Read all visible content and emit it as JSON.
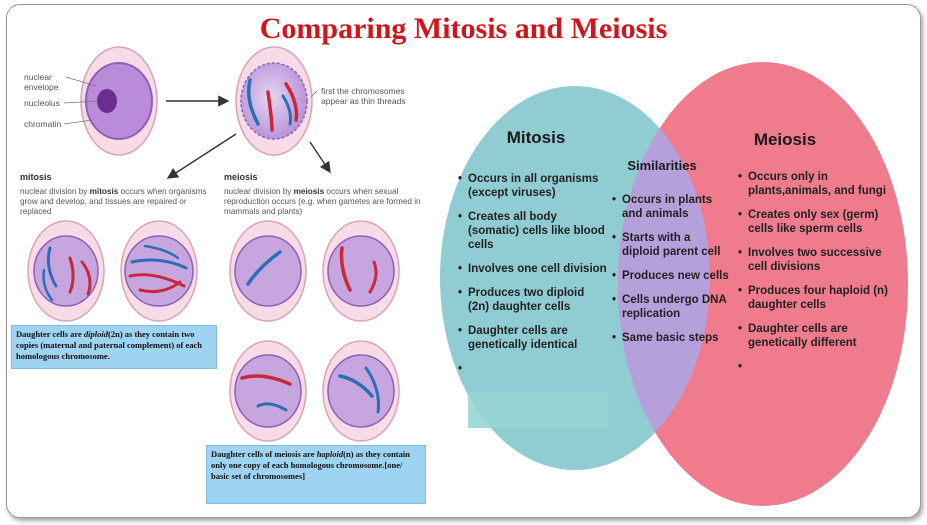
{
  "title": "Comparing Mitosis and Meiosis",
  "labels": {
    "nuclear_envelope": "nuclear\nenvelope",
    "nucleolus": "nucleolus",
    "chromatin": "chromatin",
    "threads_note": "first the chromosomes\nappear as thin threads"
  },
  "mitosis_panel": {
    "heading": "mitosis",
    "description_pre": "nuclear division by ",
    "description_bold": "mitosis",
    "description_post": " occurs when organisms grow and develop, and tissues are repaired or replaced",
    "note_pre": "Daughter cells are ",
    "note_italic": "diploid",
    "note_post": "(2n) as they contain two copies (maternal and paternal complement) of each homologous chromosome."
  },
  "meiosis_panel": {
    "heading": "meiosis",
    "description_pre": "nuclear division by ",
    "description_bold": "meiosis",
    "description_post": " occurs when sexual reproduction occurs (e.g. when gametes are formed in mammals and plants)",
    "note_pre": "Daughter cells of meiosis  are ",
    "note_italic": "haploid",
    "note_post": "(n) as they contain only one copy of each homologous chromosome.[one/ basic  set of chromosomes]"
  },
  "venn": {
    "left_title": "Mitosis",
    "middle_title": "Similarities",
    "right_title": "Meiosis",
    "left_items": [
      "Occurs in all organisms (except viruses)",
      "Creates all body (somatic) cells like blood cells",
      "Involves one cell division",
      "Produces two diploid (2n) daughter cells",
      "Daughter cells are genetically identical",
      ""
    ],
    "middle_items": [
      "Occurs in plants and animals",
      "Starts with a diploid parent cell",
      "Produces new cells",
      "Cells undergo DNA replication",
      "Same basic steps"
    ],
    "right_items": [
      "Occurs only in plants,animals, and fungi",
      "Creates only sex (germ) cells like sperm cells",
      "Involves two successive cell divisions",
      "Produces four haploid (n) daughter cells",
      "Daughter cells are genetically different",
      ""
    ]
  },
  "colors": {
    "title": "#d0161c",
    "mitosis_circle": "#8fcdd3",
    "meiosis_circle": "#ef7b8c",
    "overlap": "#b6a0dc",
    "note_box": "#9fd3f2",
    "chromosome_red": "#c8283a",
    "chromosome_blue": "#2a6fb5",
    "cell_membrane": "#f6d2df",
    "cell_nucleus": "#c7a6df"
  }
}
